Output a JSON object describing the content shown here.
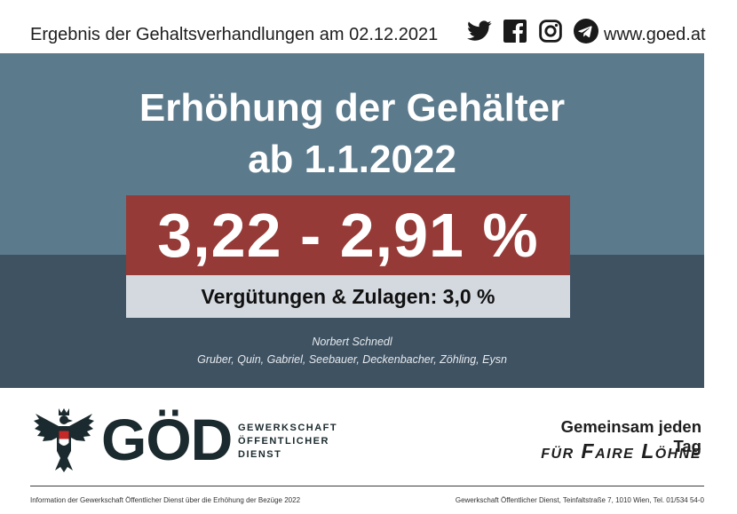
{
  "header": {
    "headline": "Ergebnis der Gehaltsverhandlungen am 02.12.2021",
    "social_icons": [
      "twitter-icon",
      "facebook-icon",
      "instagram-icon",
      "telegram-icon"
    ],
    "website": "www.goed.at"
  },
  "main": {
    "title_line1": "Erhöhung der Gehälter",
    "title_line2": "ab 1.1.2022",
    "rate": "3,22 - 2,91 %",
    "sub": "Vergütungen & Zulagen: 3,0 %",
    "signature_lead": "Norbert Schnedl",
    "signature_team": "Gruber, Quin, Gabriel, Seebauer, Deckenbacher,  Zöhling, Eysn"
  },
  "logo": {
    "acronym": "GÖD",
    "line1": "GEWERKSCHAFT",
    "line2": "ÖFFENTLICHER",
    "line3": "DIENST"
  },
  "slogan": {
    "line1": "Gemeinsam jeden Tag",
    "line2": "für Faire Löhne"
  },
  "footer": {
    "left": "Information der Gewerkschaft Öffentlicher Dienst über die Erhöhung der Bezüge 2022",
    "right": "Gewerkschaft Öffentlicher Dienst, Teinfaltstraße 7, 1010 Wien, Tel. 01/534 54-0"
  },
  "colors": {
    "band_top": "#5b7a8c",
    "band_bottom": "#3f5262",
    "rate_box": "#953a37",
    "sub_box": "#d4d9e0",
    "logo_dark": "#1b2a2e"
  }
}
